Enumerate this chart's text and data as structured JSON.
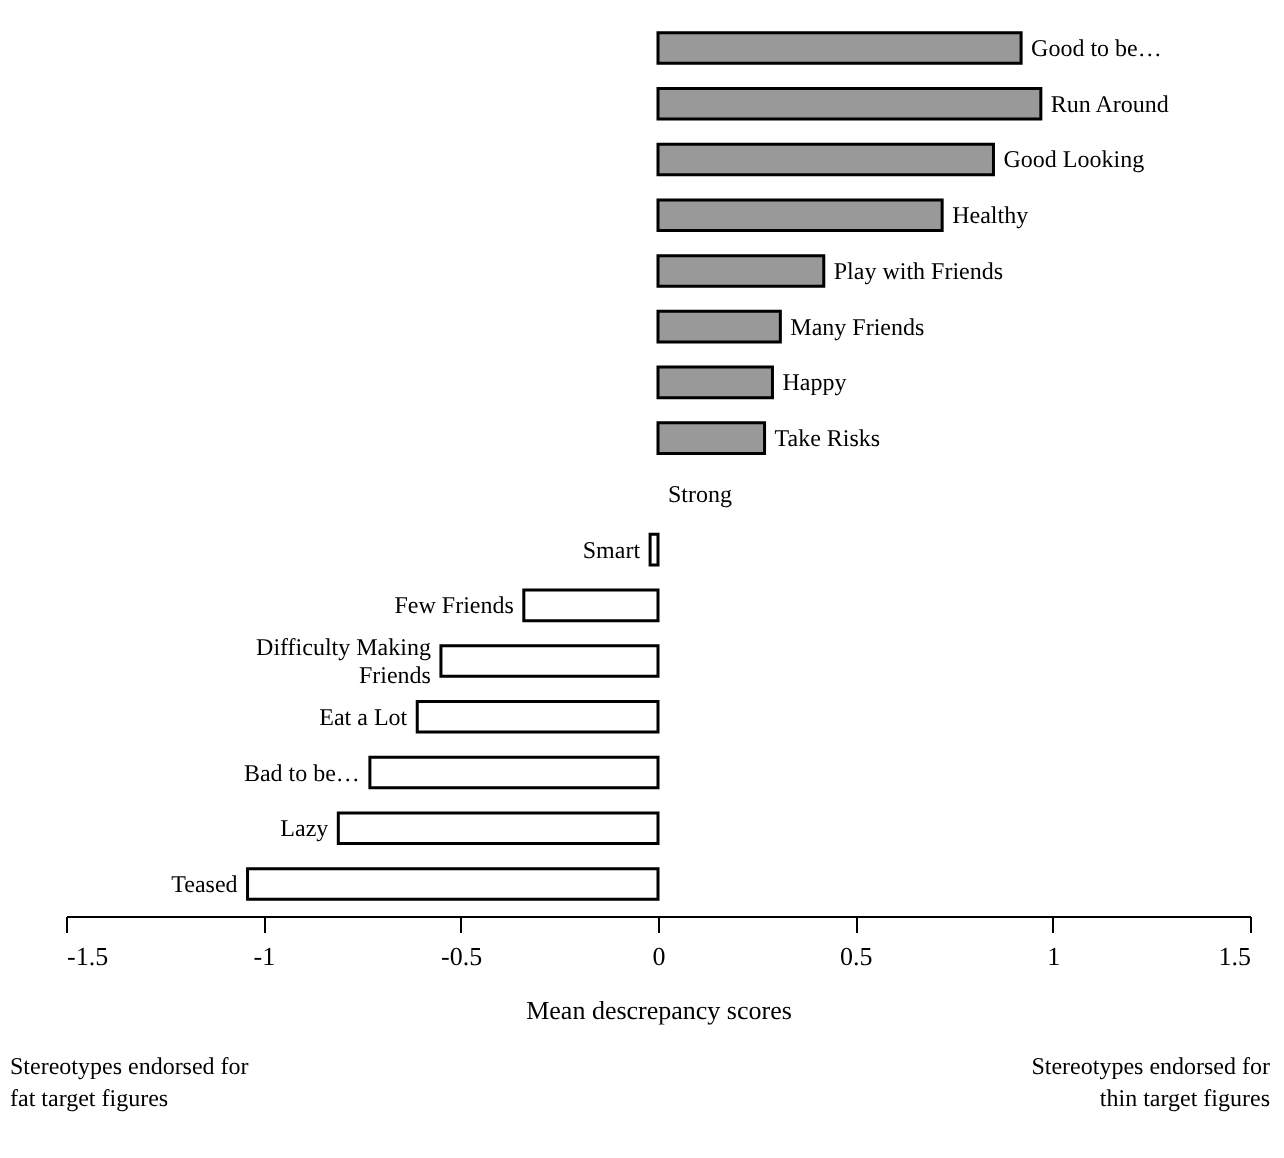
{
  "chart_data": {
    "type": "bar",
    "orientation": "horizontal",
    "xlabel": "Mean descrepancy scores",
    "categories": [
      "Good to be…",
      "Run Around",
      "Good Looking",
      "Healthy",
      "Play with Friends",
      "Many Friends",
      "Happy",
      "Take Risks",
      "Strong",
      "Smart",
      "Few Friends",
      "Difficulty Making Friends",
      "Eat a Lot",
      "Bad to be…",
      "Lazy",
      "Teased"
    ],
    "values": [
      0.92,
      0.97,
      0.85,
      0.72,
      0.42,
      0.31,
      0.29,
      0.27,
      0,
      -0.02,
      -0.34,
      -0.55,
      -0.61,
      -0.73,
      -0.81,
      -1.04
    ],
    "colors": [
      "#999999",
      "#999999",
      "#999999",
      "#999999",
      "#999999",
      "#999999",
      "#999999",
      "#999999",
      "#999999",
      "#ffffff",
      "#ffffff",
      "#ffffff",
      "#ffffff",
      "#ffffff",
      "#ffffff",
      "#ffffff"
    ],
    "xlim": [
      -1.5,
      1.5
    ],
    "xticks": [
      -1.5,
      -1,
      -0.5,
      0,
      0.5,
      1,
      1.5
    ],
    "tick_labels": "x",
    "grid": false,
    "annotations": [
      "Stereotypes endorsed for fat target figures",
      "Stereotypes endorsed for thin target figures"
    ]
  }
}
